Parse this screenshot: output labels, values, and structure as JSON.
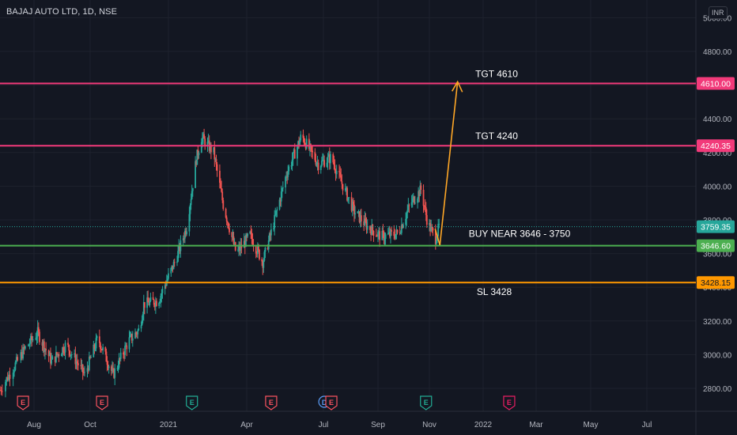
{
  "header": {
    "symbol_text": "BAJAJ AUTO LTD, 1D, NSE",
    "currency": "INR"
  },
  "colors": {
    "background": "#131722",
    "grid": "#1e222d",
    "up_candle": "#26a69a",
    "down_candle": "#ef5350",
    "target_line": "#f23a7a",
    "buy_line": "#4caf50",
    "stop_line": "#ff9800",
    "arrow": "#ffa726",
    "last_price_line": "#26a69a",
    "axis_text": "#b2b5be"
  },
  "chart_data": {
    "type": "candlestick",
    "y_axis": {
      "ticks": [
        2800,
        3000,
        3200,
        3400,
        3600,
        3800,
        4000,
        4200,
        4400,
        4600,
        4800,
        5000
      ],
      "tick_labels": [
        "2800.00",
        "3000.00",
        "3200.00",
        "3400.00",
        "3600.00",
        "3800.00",
        "4000.00",
        "4200.00",
        "4400.00",
        "4600.00",
        "4800.00",
        "5000.00"
      ],
      "range": [
        2690,
        5050
      ]
    },
    "x_axis": {
      "tick_labels": [
        "Aug",
        "Oct",
        "2021",
        "Apr",
        "Jul",
        "Sep",
        "Nov",
        "2022",
        "Mar",
        "May",
        "Jul"
      ],
      "range": [
        "2020-07-01",
        "2022-08-25"
      ]
    },
    "price_path": [
      {
        "date": "2020-07-01",
        "price": 2790
      },
      {
        "date": "2020-07-25",
        "price": 3050
      },
      {
        "date": "2020-08-05",
        "price": 3130
      },
      {
        "date": "2020-08-20",
        "price": 2960
      },
      {
        "date": "2020-09-05",
        "price": 3060
      },
      {
        "date": "2020-09-25",
        "price": 2880
      },
      {
        "date": "2020-10-10",
        "price": 3100
      },
      {
        "date": "2020-10-28",
        "price": 2880
      },
      {
        "date": "2020-11-15",
        "price": 3080
      },
      {
        "date": "2020-11-28",
        "price": 3150
      },
      {
        "date": "2020-12-03",
        "price": 3300
      },
      {
        "date": "2020-12-20",
        "price": 3320
      },
      {
        "date": "2021-01-10",
        "price": 3570
      },
      {
        "date": "2021-01-22",
        "price": 3760
      },
      {
        "date": "2021-02-02",
        "price": 4160
      },
      {
        "date": "2021-02-08",
        "price": 4290
      },
      {
        "date": "2021-02-22",
        "price": 4200
      },
      {
        "date": "2021-03-05",
        "price": 3890
      },
      {
        "date": "2021-03-20",
        "price": 3600
      },
      {
        "date": "2021-04-05",
        "price": 3710
      },
      {
        "date": "2021-04-20",
        "price": 3550
      },
      {
        "date": "2021-05-02",
        "price": 3760
      },
      {
        "date": "2021-05-18",
        "price": 4070
      },
      {
        "date": "2021-06-05",
        "price": 4300
      },
      {
        "date": "2021-06-25",
        "price": 4130
      },
      {
        "date": "2021-07-10",
        "price": 4170
      },
      {
        "date": "2021-07-20",
        "price": 4040
      },
      {
        "date": "2021-08-05",
        "price": 3850
      },
      {
        "date": "2021-08-20",
        "price": 3760
      },
      {
        "date": "2021-09-05",
        "price": 3700
      },
      {
        "date": "2021-09-25",
        "price": 3720
      },
      {
        "date": "2021-10-10",
        "price": 3900
      },
      {
        "date": "2021-10-22",
        "price": 3980
      },
      {
        "date": "2021-10-30",
        "price": 3780
      },
      {
        "date": "2021-11-08",
        "price": 3690
      },
      {
        "date": "2021-11-12",
        "price": 3759.35
      }
    ],
    "horizontal_lines": [
      {
        "price": 4610,
        "label": "TGT 4610",
        "value_label": "4610.00",
        "role": "target"
      },
      {
        "price": 4240.35,
        "label": "TGT 4240",
        "value_label": "4240.35",
        "role": "target"
      },
      {
        "price": 3646.6,
        "label": "BUY NEAR 3646 - 3750",
        "value_label": "3646.60",
        "role": "buy"
      },
      {
        "price": 3428.15,
        "label": "SL 3428",
        "value_label": "3428.15",
        "role": "stop"
      }
    ],
    "last_price": {
      "price": 3759.35,
      "value_label": "3759.35"
    },
    "projection_arrow": [
      {
        "date": "2021-11-12",
        "price": 3650
      },
      {
        "date": "2021-12-03",
        "price": 4620
      }
    ],
    "event_markers": [
      {
        "date": "2020-07-22",
        "letter": "E",
        "kind": "earnings"
      },
      {
        "date": "2020-10-15",
        "letter": "E",
        "kind": "earnings"
      },
      {
        "date": "2021-01-28",
        "letter": "E",
        "kind": "earnings-positive"
      },
      {
        "date": "2021-04-30",
        "letter": "E",
        "kind": "earnings"
      },
      {
        "date": "2021-07-02",
        "letter": "D",
        "kind": "dividend"
      },
      {
        "date": "2021-07-10",
        "letter": "E",
        "kind": "earnings"
      },
      {
        "date": "2021-10-28",
        "letter": "E",
        "kind": "earnings-positive"
      },
      {
        "date": "2022-01-30",
        "letter": "E",
        "kind": "earnings-future"
      }
    ]
  }
}
